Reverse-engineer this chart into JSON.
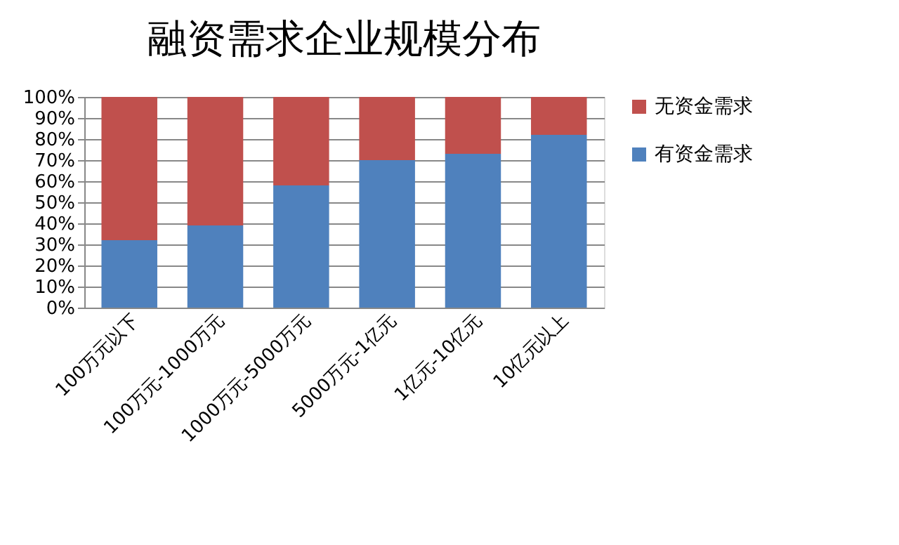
{
  "chart_data": {
    "type": "bar",
    "title": "融资需求企业规模分布",
    "stacked": true,
    "categories": [
      "100万元以下",
      "100万元-1000万元",
      "1000万元-5000万元",
      "5000万元-1亿元",
      "1亿元-10亿元",
      "10亿元以上"
    ],
    "series": [
      {
        "name": "有资金需求",
        "color": "#4f81bd",
        "values": [
          32,
          39,
          58,
          70,
          73,
          82
        ]
      },
      {
        "name": "无资金需求",
        "color": "#c0504d",
        "values": [
          68,
          61,
          42,
          30,
          27,
          18
        ]
      }
    ],
    "ylim": [
      0,
      100
    ],
    "yticks": [
      {
        "value": 0,
        "label": "0%"
      },
      {
        "value": 10,
        "label": "10%"
      },
      {
        "value": 20,
        "label": "20%"
      },
      {
        "value": 30,
        "label": "30%"
      },
      {
        "value": 40,
        "label": "40%"
      },
      {
        "value": 50,
        "label": "50%"
      },
      {
        "value": 60,
        "label": "60%"
      },
      {
        "value": 70,
        "label": "70%"
      },
      {
        "value": 80,
        "label": "80%"
      },
      {
        "value": 90,
        "label": "90%"
      },
      {
        "value": 100,
        "label": "100%"
      }
    ],
    "grid": "y",
    "legend": "right"
  }
}
